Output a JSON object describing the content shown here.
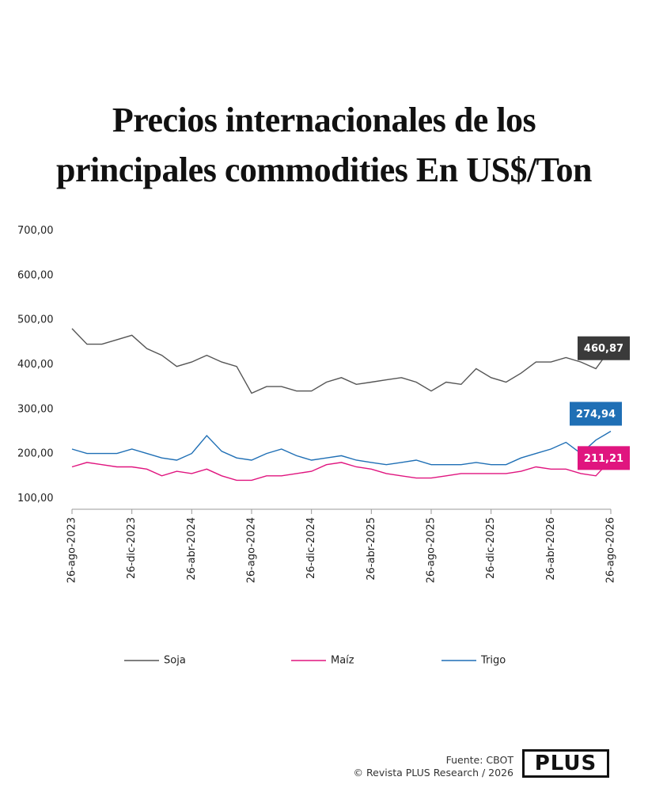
{
  "chart_data": {
    "type": "line",
    "title": "Precios internacionales de los principales commodities En US$/Ton",
    "categories": [
      "26-ago-2023",
      null,
      null,
      null,
      "26-dic-2023",
      null,
      null,
      null,
      "26-abr-2024",
      null,
      null,
      null,
      "26-ago-2024",
      null,
      null,
      null,
      "26-dic-2024",
      null,
      null,
      null,
      "26-abr-2025",
      null,
      null,
      null,
      "26-ago-2025",
      null,
      null,
      null,
      "26-dic-2025",
      null,
      null,
      null,
      "26-abr-2026",
      null,
      null,
      null,
      "26-ago-2026"
    ],
    "series": [
      {
        "name": "Soja",
        "color": "#555555",
        "label_bg": "#3a3a3a",
        "values": [
          505,
          470,
          470,
          480,
          490,
          460,
          445,
          420,
          430,
          445,
          430,
          420,
          360,
          375,
          375,
          365,
          365,
          385,
          395,
          380,
          385,
          390,
          395,
          385,
          365,
          385,
          380,
          415,
          395,
          385,
          405,
          430,
          430,
          440,
          430,
          415,
          460.87
        ],
        "value_labels": [
          null,
          null,
          null,
          null,
          null,
          null,
          null,
          null,
          null,
          null,
          null,
          null,
          null,
          null,
          null,
          null,
          null,
          null,
          null,
          null,
          null,
          null,
          null,
          null,
          null,
          null,
          null,
          null,
          null,
          null,
          null,
          null,
          null,
          null,
          null,
          null,
          "460,87"
        ]
      },
      {
        "name": "Maíz",
        "color": "#e0157f",
        "label_bg": "#e0157f",
        "values": [
          195,
          205,
          200,
          195,
          195,
          190,
          175,
          185,
          180,
          190,
          175,
          165,
          165,
          175,
          175,
          180,
          185,
          200,
          205,
          195,
          190,
          180,
          175,
          170,
          170,
          175,
          180,
          180,
          180,
          180,
          185,
          195,
          190,
          190,
          180,
          175,
          211.21
        ],
        "value_labels": [
          null,
          null,
          null,
          null,
          null,
          null,
          null,
          null,
          null,
          null,
          null,
          null,
          null,
          null,
          null,
          null,
          null,
          null,
          null,
          null,
          null,
          null,
          null,
          null,
          null,
          null,
          null,
          null,
          null,
          null,
          null,
          null,
          null,
          null,
          null,
          null,
          "211,21"
        ]
      },
      {
        "name": "Trigo",
        "color": "#1f6fb5",
        "label_bg": "#1f6fb5",
        "values": [
          235,
          225,
          225,
          225,
          235,
          225,
          215,
          210,
          225,
          265,
          230,
          215,
          210,
          225,
          235,
          220,
          210,
          215,
          220,
          210,
          205,
          200,
          205,
          210,
          200,
          200,
          200,
          205,
          200,
          200,
          215,
          225,
          235,
          250,
          225,
          255,
          274.94
        ],
        "value_labels": [
          null,
          null,
          null,
          null,
          null,
          null,
          null,
          null,
          null,
          null,
          null,
          null,
          null,
          null,
          null,
          null,
          null,
          null,
          null,
          null,
          null,
          null,
          null,
          null,
          null,
          null,
          null,
          null,
          null,
          null,
          null,
          null,
          null,
          null,
          null,
          null,
          "274,94"
        ]
      }
    ],
    "ylim": [
      100,
      700
    ],
    "yticks": [
      {
        "value": 100,
        "label": "100,00"
      },
      {
        "value": 200,
        "label": "200,00"
      },
      {
        "value": 300,
        "label": "300,00"
      },
      {
        "value": 400,
        "label": "400,00"
      },
      {
        "value": 500,
        "label": "500,00"
      },
      {
        "value": 600,
        "label": "600,00"
      },
      {
        "value": 700,
        "label": "700,00"
      }
    ],
    "grid": false,
    "legend": "bottom",
    "source": "Fuente: CBOT",
    "credit": "© Revista PLUS Research / 2026",
    "logo": "PLUS"
  }
}
